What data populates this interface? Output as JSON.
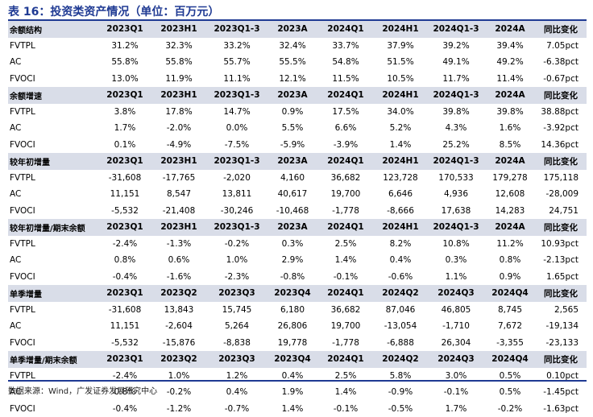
{
  "title": "表 16：投资类资产情况（单位：百万元）",
  "source": "数据来源：Wind，广发证券发展研究中心",
  "sections": [
    {
      "label": "余额结构",
      "headers": [
        "2023Q1",
        "2023H1",
        "2023Q1-3",
        "2023A",
        "2024Q1",
        "2024H1",
        "2024Q1-3",
        "2024A",
        "同比变化"
      ],
      "rows": [
        {
          "label": "FVTPL",
          "values": [
            "31.2%",
            "32.3%",
            "33.2%",
            "32.4%",
            "33.7%",
            "37.9%",
            "39.2%",
            "39.4%",
            "7.05pct"
          ]
        },
        {
          "label": "AC",
          "values": [
            "55.8%",
            "55.8%",
            "55.7%",
            "55.5%",
            "54.8%",
            "51.5%",
            "49.1%",
            "49.2%",
            "-6.38pct"
          ]
        },
        {
          "label": "FVOCI",
          "values": [
            "13.0%",
            "11.9%",
            "11.1%",
            "12.1%",
            "11.5%",
            "10.5%",
            "11.7%",
            "11.4%",
            "-0.67pct"
          ]
        }
      ]
    },
    {
      "label": "余额增速",
      "headers": [
        "2023Q1",
        "2023H1",
        "2023Q1-3",
        "2023A",
        "2024Q1",
        "2024H1",
        "2024Q1-3",
        "2024A",
        "同比变化"
      ],
      "rows": [
        {
          "label": "FVTPL",
          "values": [
            "3.8%",
            "17.8%",
            "14.7%",
            "0.9%",
            "17.5%",
            "34.0%",
            "39.8%",
            "39.8%",
            "38.88pct"
          ]
        },
        {
          "label": "AC",
          "values": [
            "1.7%",
            "-2.0%",
            "0.0%",
            "5.5%",
            "6.6%",
            "5.2%",
            "4.3%",
            "1.6%",
            "-3.92pct"
          ]
        },
        {
          "label": "FVOCI",
          "values": [
            "0.1%",
            "-4.9%",
            "-7.5%",
            "-5.9%",
            "-3.9%",
            "1.4%",
            "25.2%",
            "8.5%",
            "14.36pct"
          ]
        }
      ]
    },
    {
      "label": "较年初增量",
      "headers": [
        "2023Q1",
        "2023H1",
        "2023Q1-3",
        "2023A",
        "2024Q1",
        "2024H1",
        "2024Q1-3",
        "2024A",
        "同比变化"
      ],
      "rows": [
        {
          "label": "FVTPL",
          "values": [
            "-31,608",
            "-17,765",
            "-2,020",
            "4,160",
            "36,682",
            "123,728",
            "170,533",
            "179,278",
            "175,118"
          ]
        },
        {
          "label": "AC",
          "values": [
            "11,151",
            "8,547",
            "13,811",
            "40,617",
            "19,700",
            "6,646",
            "4,936",
            "12,608",
            "-28,009"
          ]
        },
        {
          "label": "FVOCI",
          "values": [
            "-5,532",
            "-21,408",
            "-30,246",
            "-10,468",
            "-1,778",
            "-8,666",
            "17,638",
            "14,283",
            "24,751"
          ]
        }
      ]
    },
    {
      "label": "较年初增量/期末余额",
      "headers": [
        "2023Q1",
        "2023H1",
        "2023Q1-3",
        "2023A",
        "2024Q1",
        "2024H1",
        "2024Q1-3",
        "2024A",
        "同比变化"
      ],
      "rows": [
        {
          "label": "FVTPL",
          "values": [
            "-2.4%",
            "-1.3%",
            "-0.2%",
            "0.3%",
            "2.5%",
            "8.2%",
            "10.8%",
            "11.2%",
            "10.93pct"
          ]
        },
        {
          "label": "AC",
          "values": [
            "0.8%",
            "0.6%",
            "1.0%",
            "2.9%",
            "1.4%",
            "0.4%",
            "0.3%",
            "0.8%",
            "-2.13pct"
          ]
        },
        {
          "label": "FVOCI",
          "values": [
            "-0.4%",
            "-1.6%",
            "-2.3%",
            "-0.8%",
            "-0.1%",
            "-0.6%",
            "1.1%",
            "0.9%",
            "1.65pct"
          ]
        }
      ]
    },
    {
      "label": "单季增量",
      "headers": [
        "2023Q1",
        "2023Q2",
        "2023Q3",
        "2023Q4",
        "2024Q1",
        "2024Q2",
        "2024Q3",
        "2024Q4",
        "同比变化"
      ],
      "rows": [
        {
          "label": "FVTPL",
          "values": [
            "-31,608",
            "13,843",
            "15,745",
            "6,180",
            "36,682",
            "87,046",
            "46,805",
            "8,745",
            "2,565"
          ]
        },
        {
          "label": "AC",
          "values": [
            "11,151",
            "-2,604",
            "5,264",
            "26,806",
            "19,700",
            "-13,054",
            "-1,710",
            "7,672",
            "-19,134"
          ]
        },
        {
          "label": "FVOCI",
          "values": [
            "-5,532",
            "-15,876",
            "-8,838",
            "19,778",
            "-1,778",
            "-6,888",
            "26,304",
            "-3,355",
            "-23,133"
          ]
        }
      ]
    },
    {
      "label": "单季增量/期末余额",
      "headers": [
        "2023Q1",
        "2023Q2",
        "2023Q3",
        "2023Q4",
        "2024Q1",
        "2024Q2",
        "2024Q3",
        "2024Q4",
        "同比变化"
      ],
      "rows": [
        {
          "label": "FVTPL",
          "values": [
            "-2.4%",
            "1.0%",
            "1.2%",
            "0.4%",
            "2.5%",
            "5.8%",
            "3.0%",
            "0.5%",
            "0.10pct"
          ]
        },
        {
          "label": "AC",
          "values": [
            "0.8%",
            "-0.2%",
            "0.4%",
            "1.9%",
            "1.4%",
            "-0.9%",
            "-0.1%",
            "0.5%",
            "-1.45pct"
          ]
        },
        {
          "label": "FVOCI",
          "values": [
            "-0.4%",
            "-1.2%",
            "-0.7%",
            "1.4%",
            "-0.1%",
            "-0.5%",
            "1.7%",
            "-0.2%",
            "-1.63pct"
          ]
        }
      ]
    }
  ]
}
